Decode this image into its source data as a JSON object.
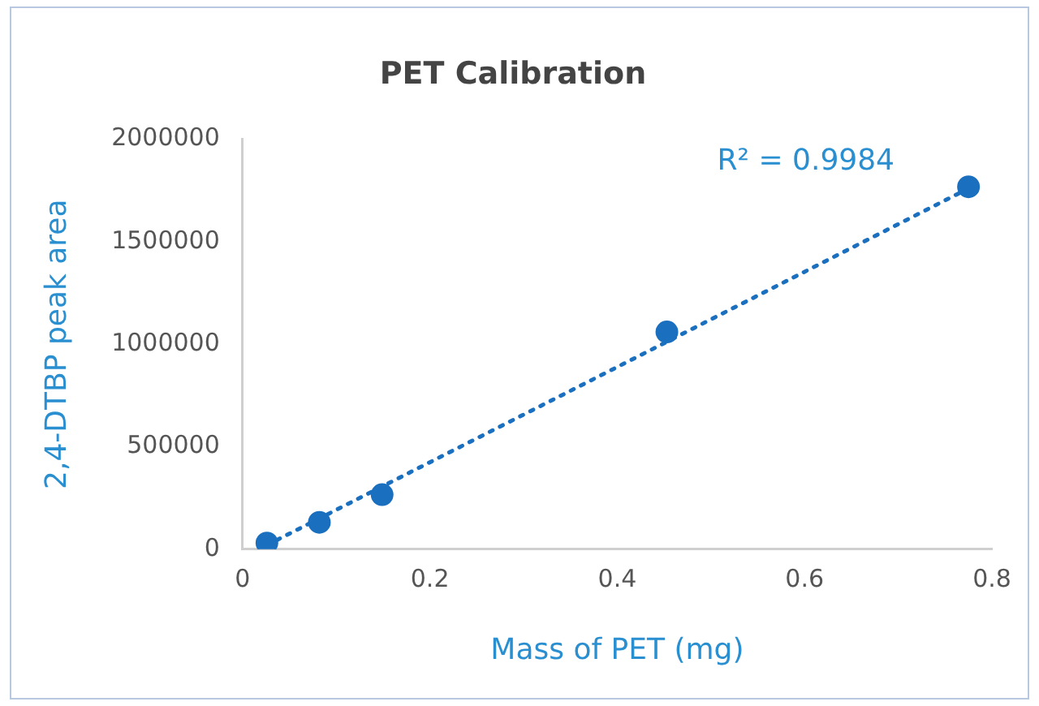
{
  "chart_data": {
    "type": "scatter",
    "title": "PET Calibration",
    "xlabel": "Mass of PET (mg)",
    "ylabel": "2,4-DTBP peak area",
    "x": [
      0.026,
      0.082,
      0.149,
      0.453,
      0.775
    ],
    "series": [
      {
        "color": "#1b6fbf",
        "values": [
          30000,
          131000,
          266000,
          1060000,
          1768000
        ],
        "marker": "circle"
      },
      {
        "type": "line",
        "color": "#1b6fbf",
        "x": [
          0.026,
          0.775
        ],
        "values": [
          20000,
          1760000
        ],
        "line_style": "dotted",
        "marker": "none"
      }
    ],
    "annotations": [
      "R² = 0.9984"
    ],
    "xlim": [
      0,
      0.8
    ],
    "xticks": [
      0,
      0.2,
      0.4,
      0.6,
      0.8
    ],
    "ylim": [
      0,
      2000000
    ],
    "yticks": [
      0,
      500000,
      1000000,
      1500000,
      2000000
    ],
    "grid": false,
    "legend": false
  }
}
